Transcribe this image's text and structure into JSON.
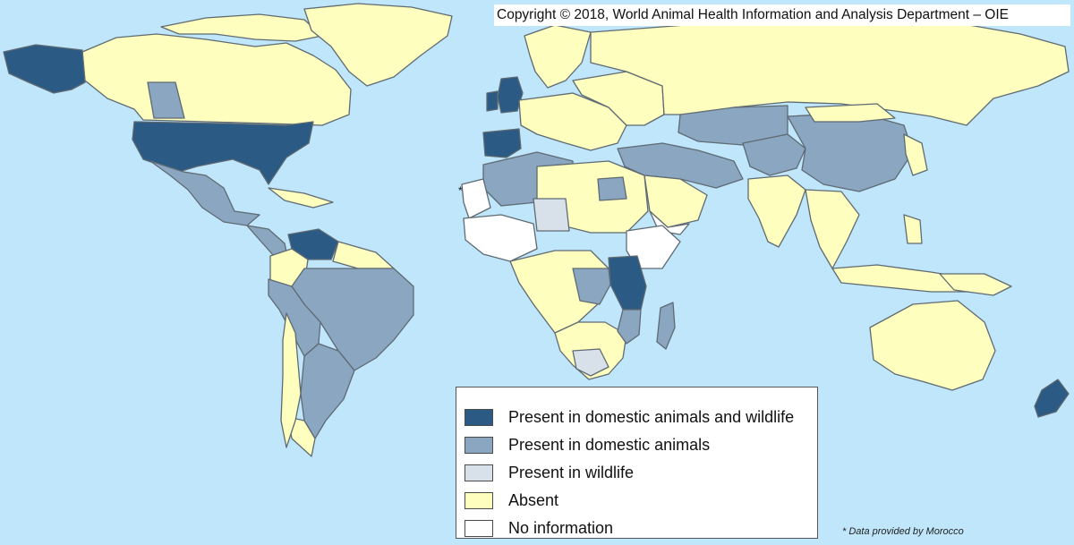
{
  "header": {
    "copyright": "Copyright © 2018, World Animal Health Information and Analysis Department – OIE"
  },
  "legend": {
    "items": [
      {
        "label": "Present in domestic animals and wildlife",
        "color": "#2b5a84"
      },
      {
        "label": "Present in domestic animals",
        "color": "#8aa6c0"
      },
      {
        "label": "Present in wildlife",
        "color": "#d8e1ea"
      },
      {
        "label": "Absent",
        "color": "#fefebe"
      },
      {
        "label": "No information",
        "color": "#ffffff"
      }
    ]
  },
  "annotations": {
    "morocco_marker": "*",
    "footnote": "* Data provided by Morocco"
  },
  "colors": {
    "ocean": "#bfe6fb",
    "border": "#5f6a72",
    "both": "#2b5a84",
    "domestic": "#8aa6c0",
    "wildlife": "#d8e1ea",
    "absent": "#fefebe",
    "no_info": "#ffffff"
  }
}
